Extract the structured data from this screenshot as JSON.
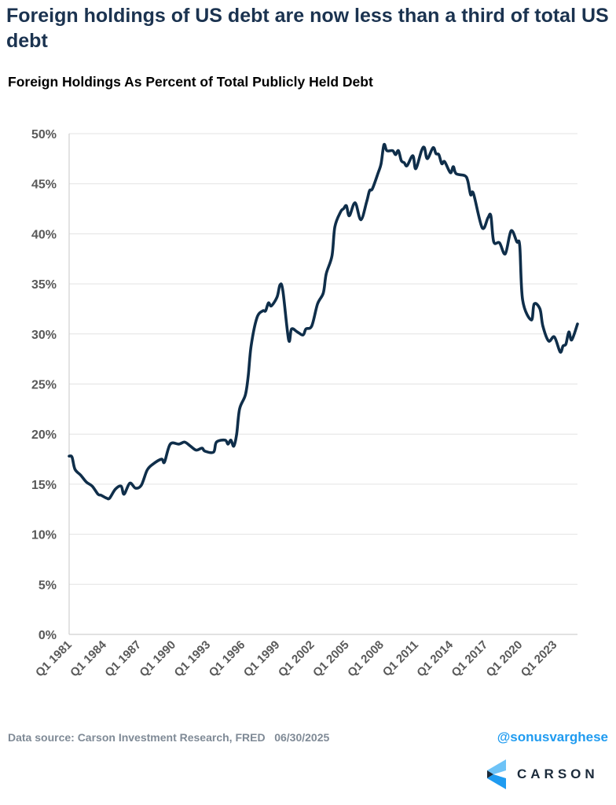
{
  "title": "Foreign holdings of US debt are now less than a third of total US debt",
  "footer": {
    "source": "Data source: Carson Investment Research, FRED   06/30/2025",
    "handle": "@sonusvarghese",
    "logo_text": "CARSON"
  },
  "colors": {
    "line": "#0f2e4a",
    "title": "#1b3350",
    "handle": "#1f9bf0",
    "grid": "#e3e3e3"
  },
  "chart_data": {
    "type": "line",
    "title": "Foreign Holdings As Percent of Total Publicly Held Debt",
    "xlabel": "",
    "ylabel": "",
    "ylim": [
      0,
      50
    ],
    "xlim": [
      "Q1 1981",
      "Q1 2025"
    ],
    "grid": "horizontal",
    "y_ticks": [
      "0%",
      "5%",
      "10%",
      "15%",
      "20%",
      "25%",
      "30%",
      "35%",
      "40%",
      "45%",
      "50%"
    ],
    "x_ticks": [
      "Q1 1981",
      "Q1 1984",
      "Q1 1987",
      "Q1 1990",
      "Q1 1993",
      "Q1 1996",
      "Q1 1999",
      "Q1 2002",
      "Q1 2005",
      "Q1 2008",
      "Q1 2011",
      "Q1 2014",
      "Q1 2017",
      "Q1 2020",
      "Q1 2023"
    ],
    "series": [
      {
        "points": [
          [
            "Q1 1981",
            17.8
          ],
          [
            "Q2 1981",
            17.7
          ],
          [
            "Q3 1981",
            16.5
          ],
          [
            "Q1 1982",
            15.9
          ],
          [
            "Q3 1982",
            15.2
          ],
          [
            "Q1 1983",
            14.8
          ],
          [
            "Q3 1983",
            14.0
          ],
          [
            "Q4 1983",
            13.9
          ],
          [
            "Q2 1984",
            13.6
          ],
          [
            "Q3 1984",
            13.6
          ],
          [
            "Q1 1985",
            14.5
          ],
          [
            "Q3 1985",
            14.8
          ],
          [
            "Q4 1985",
            14.0
          ],
          [
            "Q2 1986",
            15.1
          ],
          [
            "Q4 1986",
            14.6
          ],
          [
            "Q2 1987",
            14.9
          ],
          [
            "Q4 1987",
            16.4
          ],
          [
            "Q2 1988",
            17.0
          ],
          [
            "Q1 1989",
            17.5
          ],
          [
            "Q2 1989",
            17.2
          ],
          [
            "Q4 1989",
            19.0
          ],
          [
            "Q3 1990",
            19.0
          ],
          [
            "Q1 1991",
            19.2
          ],
          [
            "Q3 1991",
            18.8
          ],
          [
            "Q1 1992",
            18.4
          ],
          [
            "Q3 1992",
            18.6
          ],
          [
            "Q4 1992",
            18.3
          ],
          [
            "Q3 1993",
            18.2
          ],
          [
            "Q4 1993",
            19.2
          ],
          [
            "Q3 1994",
            19.4
          ],
          [
            "Q4 1994",
            19.0
          ],
          [
            "Q1 1995",
            19.4
          ],
          [
            "Q2 1995",
            18.8
          ],
          [
            "Q3 1995",
            20.0
          ],
          [
            "Q4 1995",
            22.5
          ],
          [
            "Q2 1996",
            23.9
          ],
          [
            "Q3 1996",
            25.8
          ],
          [
            "Q4 1996",
            28.8
          ],
          [
            "Q2 1997",
            31.6
          ],
          [
            "Q4 1997",
            32.3
          ],
          [
            "Q1 1998",
            32.3
          ],
          [
            "Q2 1998",
            33.1
          ],
          [
            "Q3 1998",
            32.8
          ],
          [
            "Q1 1999",
            33.7
          ],
          [
            "Q2 1999",
            34.9
          ],
          [
            "Q3 1999",
            34.3
          ],
          [
            "Q1 2000",
            29.4
          ],
          [
            "Q2 2000",
            30.5
          ],
          [
            "Q4 2000",
            30.2
          ],
          [
            "Q2 2001",
            29.9
          ],
          [
            "Q3 2001",
            30.5
          ],
          [
            "Q1 2002",
            30.8
          ],
          [
            "Q3 2002",
            33.0
          ],
          [
            "Q1 2003",
            34.1
          ],
          [
            "Q2 2003",
            36.0
          ],
          [
            "Q4 2003",
            37.8
          ],
          [
            "Q1 2004",
            40.7
          ],
          [
            "Q3 2004",
            42.2
          ],
          [
            "Q4 2004",
            42.5
          ],
          [
            "Q1 2005",
            42.8
          ],
          [
            "Q2 2005",
            41.8
          ],
          [
            "Q4 2005",
            43.1
          ],
          [
            "Q2 2006",
            41.4
          ],
          [
            "Q4 2006",
            43.2
          ],
          [
            "Q1 2007",
            44.3
          ],
          [
            "Q2 2007",
            44.5
          ],
          [
            "Q4 2007",
            46.1
          ],
          [
            "Q1 2008",
            47.0
          ],
          [
            "Q2 2008",
            48.9
          ],
          [
            "Q3 2008",
            48.3
          ],
          [
            "Q1 2009",
            48.3
          ],
          [
            "Q2 2009",
            47.9
          ],
          [
            "Q3 2009",
            48.3
          ],
          [
            "Q4 2009",
            47.3
          ],
          [
            "Q1 2010",
            47.1
          ],
          [
            "Q2 2010",
            46.8
          ],
          [
            "Q4 2010",
            47.8
          ],
          [
            "Q1 2011",
            46.5
          ],
          [
            "Q3 2011",
            48.3
          ],
          [
            "Q4 2011",
            48.6
          ],
          [
            "Q1 2012",
            47.5
          ],
          [
            "Q3 2012",
            48.6
          ],
          [
            "Q4 2012",
            48.0
          ],
          [
            "Q1 2013",
            47.9
          ],
          [
            "Q2 2013",
            47.0
          ],
          [
            "Q3 2013",
            47.2
          ],
          [
            "Q1 2014",
            46.1
          ],
          [
            "Q2 2014",
            46.7
          ],
          [
            "Q3 2014",
            46.0
          ],
          [
            "Q2 2015",
            45.8
          ],
          [
            "Q3 2015",
            45.3
          ],
          [
            "Q4 2015",
            43.9
          ],
          [
            "Q1 2016",
            44.0
          ],
          [
            "Q4 2016",
            40.6
          ],
          [
            "Q2 2017",
            41.6
          ],
          [
            "Q3 2017",
            41.8
          ],
          [
            "Q4 2017",
            39.2
          ],
          [
            "Q2 2018",
            39.1
          ],
          [
            "Q4 2018",
            38.0
          ],
          [
            "Q2 2019",
            40.3
          ],
          [
            "Q4 2019",
            39.2
          ],
          [
            "Q1 2020",
            38.8
          ],
          [
            "Q2 2020",
            33.4
          ],
          [
            "Q1 2021",
            31.4
          ],
          [
            "Q2 2021",
            33.0
          ],
          [
            "Q4 2021",
            32.5
          ],
          [
            "Q1 2022",
            30.8
          ],
          [
            "Q3 2022",
            29.3
          ],
          [
            "Q1 2023",
            29.7
          ],
          [
            "Q3 2023",
            28.2
          ],
          [
            "Q4 2023",
            28.8
          ],
          [
            "Q1 2024",
            29.0
          ],
          [
            "Q2 2024",
            30.2
          ],
          [
            "Q3 2024",
            29.4
          ],
          [
            "Q1 2025",
            31.0
          ]
        ]
      }
    ]
  }
}
